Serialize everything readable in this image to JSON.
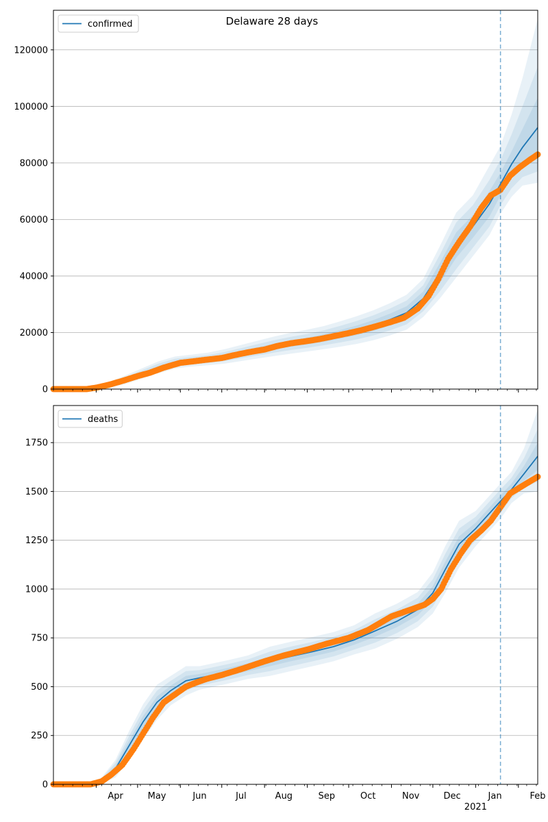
{
  "figure": {
    "title": "Delaware 28 days"
  },
  "chart_data": [
    {
      "type": "line",
      "x_type": "date",
      "xlim": [
        "2020-03-01",
        "2021-02-15"
      ],
      "ylim": [
        0,
        134000
      ],
      "yticks": [
        0,
        20000,
        40000,
        60000,
        80000,
        100000,
        120000
      ],
      "ytick_labels": [
        "0",
        "20000",
        "40000",
        "60000",
        "80000",
        "100000",
        "120000"
      ],
      "grid": "y",
      "legend": {
        "placement": "upper-left",
        "entries": [
          "confirmed"
        ]
      },
      "forecast_start": "2021-01-19",
      "series": [
        {
          "name": "confirmed",
          "kind": "model",
          "color": "#1f77b4",
          "x": [
            "2020-03-01",
            "2020-03-15",
            "2020-03-29",
            "2020-04-10",
            "2020-04-22",
            "2020-05-04",
            "2020-05-16",
            "2020-05-28",
            "2020-06-09",
            "2020-06-21",
            "2020-07-03",
            "2020-07-15",
            "2020-07-27",
            "2020-08-08",
            "2020-08-20",
            "2020-09-01",
            "2020-09-13",
            "2020-09-25",
            "2020-10-07",
            "2020-10-19",
            "2020-10-31",
            "2020-11-12",
            "2020-11-24",
            "2020-12-06",
            "2020-12-18",
            "2020-12-30",
            "2021-01-11",
            "2021-01-19",
            "2021-01-27",
            "2021-02-04",
            "2021-02-15"
          ],
          "y": [
            0,
            0,
            200,
            1300,
            3200,
            5400,
            7600,
            9300,
            10000,
            10600,
            11500,
            12700,
            13900,
            15100,
            16100,
            17000,
            18100,
            19400,
            20800,
            22500,
            24600,
            27000,
            32000,
            41000,
            51000,
            57500,
            65500,
            72500,
            79500,
            85500,
            92500
          ],
          "bands": [
            {
              "lower": [
                0,
                0,
                100,
                1000,
                2800,
                4900,
                7000,
                8700,
                9400,
                10000,
                10800,
                11900,
                13000,
                14100,
                15000,
                15800,
                16800,
                17900,
                19100,
                20600,
                22500,
                24700,
                29500,
                37500,
                46500,
                53500,
                61000,
                68500,
                75000,
                79000,
                82000
              ],
              "upper": [
                0,
                0,
                300,
                1600,
                3600,
                5900,
                8200,
                9900,
                10600,
                11200,
                12200,
                13500,
                14800,
                16100,
                17200,
                18200,
                19400,
                20900,
                22500,
                24400,
                26700,
                29300,
                34500,
                44500,
                55500,
                61500,
                70000,
                76500,
                84000,
                92000,
                103000
              ]
            },
            {
              "lower": [
                0,
                0,
                50,
                700,
                2300,
                4300,
                6300,
                8000,
                8700,
                9200,
                9900,
                10900,
                11900,
                12900,
                13800,
                14600,
                15500,
                16500,
                17600,
                19000,
                20800,
                22900,
                27500,
                34500,
                42500,
                50000,
                57500,
                65000,
                71000,
                75000,
                77000
              ],
              "upper": [
                0,
                0,
                400,
                2000,
                4200,
                6600,
                9000,
                10700,
                11400,
                12000,
                13100,
                14500,
                15900,
                17300,
                18500,
                19500,
                20800,
                22400,
                24100,
                26100,
                28500,
                31300,
                36700,
                47500,
                59000,
                65000,
                74000,
                81000,
                90000,
                100000,
                114000
              ]
            },
            {
              "lower": [
                0,
                0,
                20,
                400,
                1800,
                3700,
                5600,
                7300,
                8000,
                8400,
                9000,
                9900,
                10800,
                11700,
                12500,
                13300,
                14100,
                15000,
                16000,
                17300,
                19000,
                21000,
                25500,
                32000,
                39500,
                47000,
                54500,
                62000,
                68000,
                72000,
                73000
              ],
              "upper": [
                0,
                0,
                500,
                2400,
                4800,
                7300,
                9800,
                11500,
                12200,
                12900,
                14100,
                15600,
                17100,
                18600,
                19900,
                21000,
                22300,
                24000,
                25800,
                27900,
                30400,
                33400,
                39000,
                50500,
                62500,
                68500,
                79000,
                86000,
                97000,
                110000,
                131000
              ]
            }
          ]
        },
        {
          "kind": "observed",
          "color": "#ff7f0e",
          "x": [
            "2020-03-01",
            "2020-03-25",
            "2020-04-01",
            "2020-04-10",
            "2020-04-20",
            "2020-05-01",
            "2020-05-10",
            "2020-05-20",
            "2020-06-01",
            "2020-06-10",
            "2020-06-20",
            "2020-07-01",
            "2020-07-10",
            "2020-07-20",
            "2020-08-01",
            "2020-08-10",
            "2020-08-20",
            "2020-09-01",
            "2020-09-10",
            "2020-09-20",
            "2020-10-01",
            "2020-10-10",
            "2020-10-20",
            "2020-11-01",
            "2020-11-10",
            "2020-11-20",
            "2020-11-28",
            "2020-12-05",
            "2020-12-12",
            "2020-12-20",
            "2020-12-28",
            "2021-01-05",
            "2021-01-12",
            "2021-01-19",
            "2021-01-26",
            "2021-02-02",
            "2021-02-09",
            "2021-02-15"
          ],
          "y": [
            0,
            0,
            500,
            1500,
            2900,
            4600,
            5800,
            7600,
            9300,
            9800,
            10400,
            11000,
            12000,
            13000,
            14000,
            15200,
            16200,
            17000,
            17700,
            18700,
            19800,
            20800,
            22100,
            23800,
            25200,
            28500,
            33000,
            39000,
            46000,
            52000,
            57500,
            64000,
            68500,
            70500,
            75500,
            78500,
            81000,
            83000
          ]
        }
      ]
    },
    {
      "type": "line",
      "x_type": "date",
      "xlim": [
        "2020-03-01",
        "2021-02-15"
      ],
      "ylim": [
        0,
        1940
      ],
      "yticks": [
        0,
        250,
        500,
        750,
        1000,
        1250,
        1500,
        1750
      ],
      "ytick_labels": [
        "0",
        "250",
        "500",
        "750",
        "1000",
        "1250",
        "1500",
        "1750"
      ],
      "xtick_labels": [
        {
          "date": "2020-04-01",
          "label": "Apr"
        },
        {
          "date": "2020-05-01",
          "label": "May"
        },
        {
          "date": "2020-06-01",
          "label": "Jun"
        },
        {
          "date": "2020-07-01",
          "label": "Jul"
        },
        {
          "date": "2020-08-01",
          "label": "Aug"
        },
        {
          "date": "2020-09-01",
          "label": "Sep"
        },
        {
          "date": "2020-10-01",
          "label": "Oct"
        },
        {
          "date": "2020-11-01",
          "label": "Nov"
        },
        {
          "date": "2020-12-01",
          "label": "Dec"
        },
        {
          "date": "2021-01-01",
          "label": "Jan",
          "sublabel": "2021"
        },
        {
          "date": "2021-02-01",
          "label": "Feb"
        }
      ],
      "grid": "y",
      "legend": {
        "placement": "upper-left",
        "entries": [
          "deaths"
        ]
      },
      "forecast_start": "2021-01-19",
      "series": [
        {
          "name": "deaths",
          "kind": "model",
          "color": "#1f77b4",
          "x": [
            "2020-03-01",
            "2020-03-25",
            "2020-04-05",
            "2020-04-15",
            "2020-04-25",
            "2020-05-05",
            "2020-05-15",
            "2020-05-25",
            "2020-06-05",
            "2020-06-15",
            "2020-06-25",
            "2020-07-05",
            "2020-07-20",
            "2020-08-05",
            "2020-08-20",
            "2020-09-05",
            "2020-09-20",
            "2020-10-05",
            "2020-10-20",
            "2020-11-05",
            "2020-11-20",
            "2020-12-01",
            "2020-12-10",
            "2020-12-20",
            "2021-01-01",
            "2021-01-10",
            "2021-01-19",
            "2021-01-27",
            "2021-02-05",
            "2021-02-15"
          ],
          "y": [
            0,
            0,
            20,
            80,
            200,
            320,
            420,
            480,
            530,
            545,
            560,
            575,
            600,
            630,
            655,
            680,
            705,
            740,
            785,
            835,
            895,
            980,
            1100,
            1230,
            1310,
            1380,
            1450,
            1510,
            1590,
            1680
          ],
          "bands": [
            {
              "lower": [
                0,
                0,
                15,
                65,
                175,
                290,
                390,
                455,
                505,
                525,
                540,
                555,
                580,
                605,
                630,
                655,
                680,
                715,
                755,
                805,
                865,
                945,
                1060,
                1190,
                1280,
                1350,
                1420,
                1490,
                1555,
                1610
              ],
              "upper": [
                0,
                0,
                25,
                95,
                225,
                350,
                450,
                505,
                555,
                565,
                580,
                595,
                620,
                655,
                680,
                705,
                730,
                765,
                815,
                865,
                925,
                1015,
                1140,
                1270,
                1340,
                1410,
                1480,
                1540,
                1630,
                1750
              ]
            },
            {
              "lower": [
                0,
                0,
                10,
                50,
                150,
                260,
                360,
                430,
                480,
                505,
                520,
                535,
                560,
                580,
                605,
                630,
                655,
                690,
                725,
                775,
                835,
                910,
                1020,
                1150,
                1250,
                1320,
                1390,
                1465,
                1520,
                1550
              ],
              "upper": [
                0,
                0,
                30,
                110,
                250,
                380,
                480,
                530,
                580,
                585,
                600,
                615,
                640,
                680,
                705,
                730,
                755,
                790,
                845,
                895,
                955,
                1050,
                1180,
                1310,
                1370,
                1440,
                1510,
                1570,
                1670,
                1820
              ]
            },
            {
              "lower": [
                0,
                0,
                5,
                35,
                125,
                230,
                330,
                405,
                455,
                485,
                500,
                515,
                540,
                555,
                580,
                605,
                630,
                665,
                695,
                745,
                805,
                875,
                980,
                1110,
                1220,
                1290,
                1360,
                1440,
                1490,
                1500
              ],
              "upper": [
                0,
                0,
                35,
                125,
                275,
                410,
                510,
                555,
                605,
                605,
                620,
                635,
                660,
                705,
                730,
                755,
                780,
                815,
                875,
                925,
                985,
                1085,
                1220,
                1350,
                1400,
                1470,
                1540,
                1600,
                1720,
                1920
              ]
            }
          ]
        },
        {
          "kind": "observed",
          "color": "#ff7f0e",
          "x": [
            "2020-03-01",
            "2020-03-28",
            "2020-04-05",
            "2020-04-12",
            "2020-04-20",
            "2020-04-28",
            "2020-05-05",
            "2020-05-12",
            "2020-05-20",
            "2020-05-28",
            "2020-06-05",
            "2020-06-12",
            "2020-06-20",
            "2020-07-01",
            "2020-07-15",
            "2020-08-01",
            "2020-08-15",
            "2020-09-01",
            "2020-09-15",
            "2020-10-01",
            "2020-10-15",
            "2020-11-01",
            "2020-11-15",
            "2020-11-25",
            "2020-12-01",
            "2020-12-07",
            "2020-12-14",
            "2020-12-21",
            "2020-12-28",
            "2021-01-05",
            "2021-01-12",
            "2021-01-19",
            "2021-01-26",
            "2021-02-02",
            "2021-02-09",
            "2021-02-15"
          ],
          "y": [
            0,
            0,
            15,
            50,
            100,
            180,
            260,
            340,
            420,
            460,
            500,
            520,
            540,
            560,
            590,
            630,
            660,
            690,
            720,
            750,
            790,
            860,
            895,
            920,
            950,
            1000,
            1100,
            1180,
            1250,
            1300,
            1350,
            1420,
            1490,
            1520,
            1550,
            1575
          ]
        }
      ]
    }
  ]
}
